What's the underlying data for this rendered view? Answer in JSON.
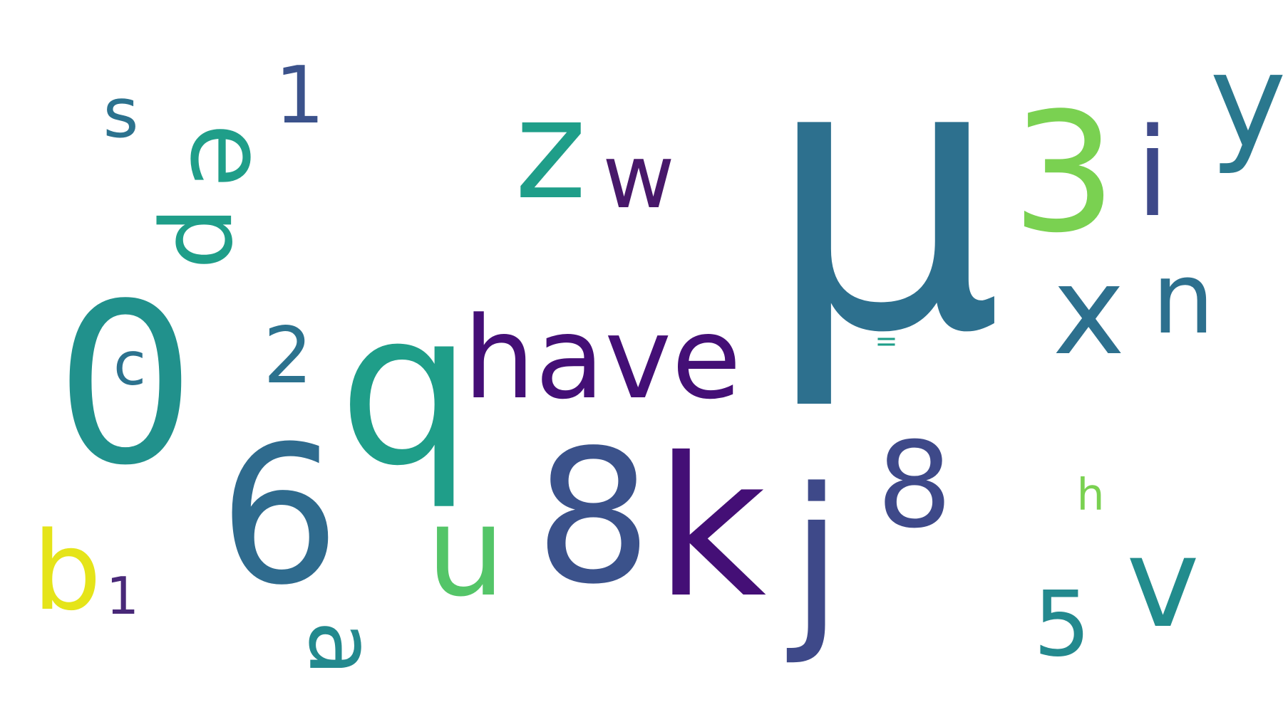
{
  "words": [
    {
      "id": "mu",
      "text": "μ",
      "color": "#2d708e",
      "rotated": false
    },
    {
      "id": "0",
      "text": "0",
      "color": "#21918c",
      "rotated": false
    },
    {
      "id": "q",
      "text": "q",
      "color": "#1f9e89",
      "rotated": false
    },
    {
      "id": "6",
      "text": "6",
      "color": "#2f6b8e",
      "rotated": false
    },
    {
      "id": "3",
      "text": "3",
      "color": "#7ad151",
      "rotated": false
    },
    {
      "id": "8-big",
      "text": "8",
      "color": "#3b528b",
      "rotated": false
    },
    {
      "id": "k",
      "text": "k",
      "color": "#440f76",
      "rotated": false
    },
    {
      "id": "z",
      "text": "z",
      "color": "#1f9e89",
      "rotated": false
    },
    {
      "id": "1-big",
      "text": "1",
      "color": "#3b528b",
      "rotated": false
    },
    {
      "id": "have",
      "text": "have",
      "color": "#440f76",
      "rotated": false
    },
    {
      "id": "u",
      "text": "u",
      "color": "#54c568",
      "rotated": false
    },
    {
      "id": "x",
      "text": "x",
      "color": "#2d708e",
      "rotated": false
    },
    {
      "id": "v",
      "text": "v",
      "color": "#228c8d",
      "rotated": false
    },
    {
      "id": "j",
      "text": "j",
      "color": "#3e4989",
      "rotated": false
    },
    {
      "id": "n",
      "text": "n",
      "color": "#2d708e",
      "rotated": false
    },
    {
      "id": "8-small",
      "text": "8",
      "color": "#3e4989",
      "rotated": false
    },
    {
      "id": "w",
      "text": "w",
      "color": "#48186a",
      "rotated": false
    },
    {
      "id": "i",
      "text": "i",
      "color": "#3e4989",
      "rotated": false
    },
    {
      "id": "y",
      "text": "y",
      "color": "#2a788e",
      "rotated": false
    },
    {
      "id": "b",
      "text": "b",
      "color": "#e5e419",
      "rotated": false
    },
    {
      "id": "5",
      "text": "5",
      "color": "#23898e",
      "rotated": false
    },
    {
      "id": "2",
      "text": "2",
      "color": "#2c728e",
      "rotated": false
    },
    {
      "id": "s",
      "text": "s",
      "color": "#2c728e",
      "rotated": false
    },
    {
      "id": "c",
      "text": "c",
      "color": "#2c728e",
      "rotated": false
    },
    {
      "id": "1-small",
      "text": "1",
      "color": "#482878",
      "rotated": false
    },
    {
      "id": "equals",
      "text": "=",
      "color": "#1f9e89",
      "rotated": false
    },
    {
      "id": "h",
      "text": "h",
      "color": "#7ad151",
      "rotated": false
    },
    {
      "id": "e",
      "text": "e",
      "color": "#1f9e89",
      "rotated": true
    },
    {
      "id": "p",
      "text": "p",
      "color": "#1f9e89",
      "rotated": true
    },
    {
      "id": "a",
      "text": "a",
      "color": "#23898e",
      "rotated": true
    }
  ]
}
